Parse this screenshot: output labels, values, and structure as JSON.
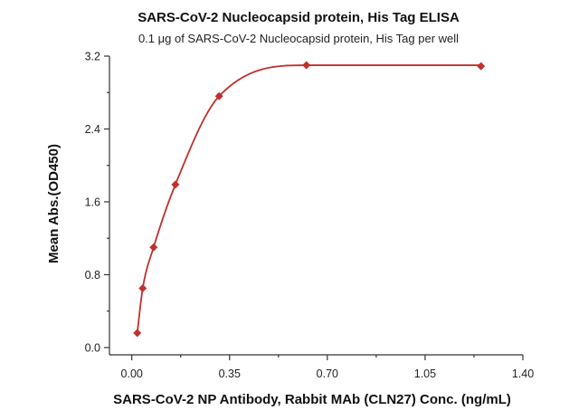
{
  "chart_data": {
    "type": "scatter",
    "title": "SARS-CoV-2 Nucleocapsid protein, His Tag ELISA",
    "subtitle": "0.1 μg of SARS-CoV-2 Nucleocapsid protein, His Tag per well",
    "xlabel": "SARS-CoV-2 NP Antibody, Rabbit MAb (CLN27) Conc. (ng/mL)",
    "ylabel": "Mean Abs.(OD450)",
    "xlim": [
      -0.08,
      1.4
    ],
    "ylim": [
      -0.08,
      3.2
    ],
    "xticks": [
      "0.00",
      "0.35",
      "0.70",
      "1.05",
      "1.40"
    ],
    "yticks": [
      "0.0",
      "0.8",
      "1.6",
      "2.4",
      "3.2"
    ],
    "grid": false,
    "colors": {
      "series": "#c0302e"
    },
    "series": [
      {
        "x": [
          0.0195,
          0.039,
          0.078,
          0.156,
          0.3125,
          0.625,
          1.25
        ],
        "y": [
          0.16,
          0.65,
          1.1,
          1.79,
          2.76,
          3.1,
          3.09
        ],
        "fit": "4PL"
      }
    ]
  }
}
